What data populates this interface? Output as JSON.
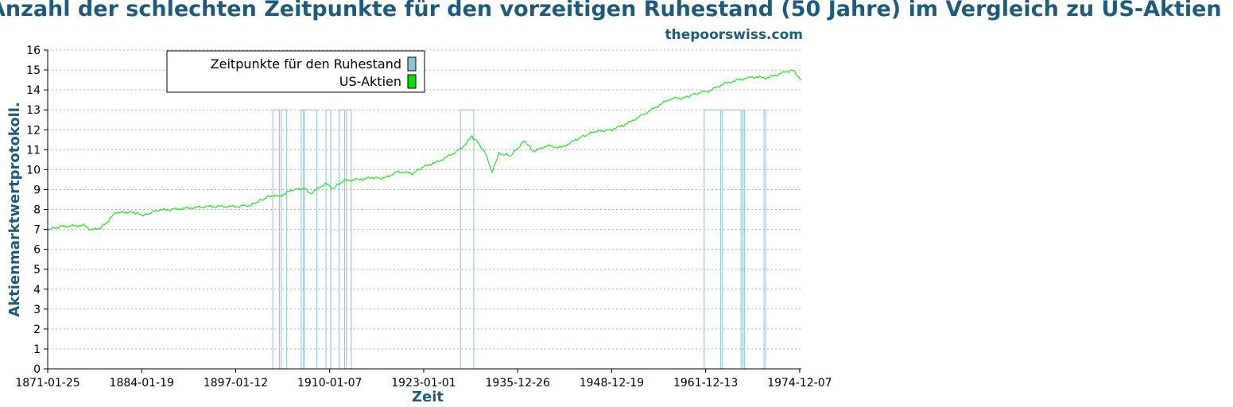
{
  "title": "Anzahl der schlechten Zeitpunkte für den vorzeitigen Ruhestand (50 Jahre) im Vergleich zu US-Aktien",
  "site": "thepoorswiss.com",
  "chart_data": {
    "type": "line",
    "xlabel": "Zeit",
    "ylabel": "Aktienmarktwertprotokoll.",
    "x_ticks": [
      "1871-01-25",
      "1884-01-19",
      "1897-01-12",
      "1910-01-07",
      "1923-01-01",
      "1935-12-26",
      "1948-12-19",
      "1961-12-13",
      "1974-12-07"
    ],
    "x_range": [
      "1871-01-25",
      "1975-03-01"
    ],
    "ylim": [
      0,
      16
    ],
    "y_ticks": [
      0,
      1,
      2,
      3,
      4,
      5,
      6,
      7,
      8,
      9,
      10,
      11,
      12,
      13,
      14,
      15,
      16
    ],
    "grid": "horizontal dotted",
    "legend": {
      "placement": "top-left",
      "entries": [
        {
          "label": "Zeitpunkte für den Ruhestand",
          "color": "#87c3e0"
        },
        {
          "label": "US-Aktien",
          "color": "#00e600"
        }
      ]
    },
    "series": [
      {
        "name": "US-Aktien",
        "color": "#00e600",
        "points": [
          [
            "1871-01-25",
            7.0
          ],
          [
            "1873-01-01",
            7.15
          ],
          [
            "1876-01-01",
            7.2
          ],
          [
            "1877-01-01",
            7.0
          ],
          [
            "1878-01-01",
            7.0
          ],
          [
            "1879-06-01",
            7.4
          ],
          [
            "1880-06-01",
            7.85
          ],
          [
            "1883-01-01",
            7.85
          ],
          [
            "1884-06-01",
            7.7
          ],
          [
            "1886-01-01",
            7.95
          ],
          [
            "1890-01-01",
            8.05
          ],
          [
            "1893-01-01",
            8.15
          ],
          [
            "1895-01-01",
            8.15
          ],
          [
            "1897-01-01",
            8.15
          ],
          [
            "1899-01-01",
            8.2
          ],
          [
            "1900-06-01",
            8.45
          ],
          [
            "1902-01-01",
            8.7
          ],
          [
            "1903-01-01",
            8.65
          ],
          [
            "1905-01-01",
            9.0
          ],
          [
            "1906-06-01",
            9.05
          ],
          [
            "1907-06-01",
            8.8
          ],
          [
            "1909-06-01",
            9.3
          ],
          [
            "1910-06-01",
            9.05
          ],
          [
            "1912-01-01",
            9.45
          ],
          [
            "1914-01-01",
            9.5
          ],
          [
            "1916-01-01",
            9.6
          ],
          [
            "1917-06-01",
            9.55
          ],
          [
            "1919-06-01",
            9.9
          ],
          [
            "1921-06-01",
            9.8
          ],
          [
            "1923-01-01",
            10.15
          ],
          [
            "1925-01-01",
            10.4
          ],
          [
            "1928-01-01",
            11.0
          ],
          [
            "1929-09-01",
            11.65
          ],
          [
            "1930-06-01",
            11.4
          ],
          [
            "1931-06-01",
            10.9
          ],
          [
            "1932-06-01",
            9.9
          ],
          [
            "1933-06-01",
            10.8
          ],
          [
            "1935-01-01",
            10.7
          ],
          [
            "1936-12-01",
            11.45
          ],
          [
            "1938-03-01",
            10.9
          ],
          [
            "1940-01-01",
            11.2
          ],
          [
            "1942-01-01",
            11.1
          ],
          [
            "1944-01-01",
            11.5
          ],
          [
            "1946-06-01",
            11.9
          ],
          [
            "1949-01-01",
            12.0
          ],
          [
            "1951-01-01",
            12.3
          ],
          [
            "1954-01-01",
            12.9
          ],
          [
            "1957-01-01",
            13.55
          ],
          [
            "1959-01-01",
            13.6
          ],
          [
            "1960-06-01",
            13.8
          ],
          [
            "1962-06-01",
            13.95
          ],
          [
            "1964-06-01",
            14.3
          ],
          [
            "1966-06-01",
            14.5
          ],
          [
            "1968-06-01",
            14.65
          ],
          [
            "1970-06-01",
            14.6
          ],
          [
            "1972-12-01",
            14.9
          ],
          [
            "1973-12-01",
            15.0
          ],
          [
            "1974-10-01",
            14.65
          ],
          [
            "1975-03-01",
            14.5
          ]
        ]
      },
      {
        "name": "Zeitpunkte für den Ruhestand",
        "color": "#87c3e0",
        "value": 13,
        "periods": [
          [
            "1902-03-01",
            "1903-02-01"
          ],
          [
            "1903-05-01",
            "1904-02-01"
          ],
          [
            "1906-02-01",
            "1906-06-01"
          ],
          [
            "1906-07-01",
            "1908-04-01"
          ],
          [
            "1909-07-01",
            "1910-03-01"
          ],
          [
            "1911-05-01",
            "1912-02-01"
          ],
          [
            "1912-05-01",
            "1913-01-01"
          ],
          [
            "1928-02-01",
            "1929-12-01"
          ],
          [
            "1961-10-01",
            "1964-01-01"
          ],
          [
            "1964-04-01",
            "1966-11-01"
          ],
          [
            "1967-02-01",
            "1967-05-01"
          ],
          [
            "1970-01-01",
            "1970-04-01"
          ]
        ]
      }
    ]
  }
}
